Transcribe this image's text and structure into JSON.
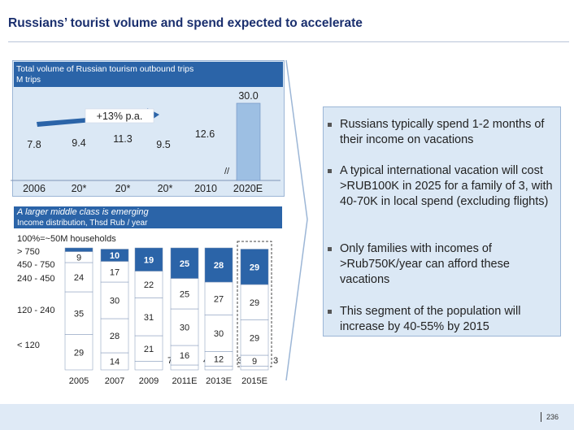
{
  "page": {
    "title": "Russians’ tourist volume and spend expected to accelerate",
    "page_number": "236"
  },
  "panel_top": {
    "title": "Total volume of Russian tourism outbound trips",
    "subtitle": "M trips"
  },
  "panel_bottom": {
    "title": "A larger middle class is emerging",
    "subtitle": "Income distribution, Thsd Rub / year"
  },
  "bullets": [
    "Russians typically spend 1-2 months of their income on vacations",
    "A typical international vacation will cost >RUB100K in 2025 for a family of 3, with 40-70K in local spend (excluding flights)",
    "Only families with incomes of >Rub750K/year can afford these vacations",
    "This segment of the population will increase by 40-55% by 2015"
  ],
  "colors": {
    "title": "#1a2f6e",
    "bar_fill": "#9dbfe3",
    "highlight": "#2b64a8",
    "panel_bg": "#dbe8f5"
  },
  "chart_data": [
    {
      "type": "bar",
      "title": "Total volume of Russian tourism outbound trips",
      "ylabel": "M trips",
      "categories": [
        "2006",
        "20*",
        "20*",
        "20*",
        "2010",
        "2020E"
      ],
      "values": [
        7.8,
        9.4,
        11.3,
        9.5,
        12.6,
        30.0
      ],
      "value_labels": [
        "7.8",
        "9.4",
        "11.3",
        "9.5",
        "12.6",
        "30.0"
      ],
      "ylim": [
        0,
        30
      ],
      "annotation": "+13% p.a.",
      "axis_break": "//"
    },
    {
      "type": "bar",
      "stacked": true,
      "title": "A larger middle class is emerging",
      "ylabel": "Income distribution, Thsd Rub / year",
      "total_label": "100%=~50M households",
      "categories": [
        "2005",
        "2007",
        "2009",
        "2011E",
        "2013E",
        "2015E"
      ],
      "series": [
        {
          "name": "< 120",
          "values": [
            29,
            14,
            7,
            4,
            3,
            3
          ]
        },
        {
          "name": "120 - 240",
          "values": [
            35,
            28,
            21,
            16,
            12,
            9
          ]
        },
        {
          "name": "240 - 450",
          "values": [
            24,
            30,
            31,
            30,
            30,
            29
          ]
        },
        {
          "name": "450 - 750",
          "values": [
            9,
            17,
            22,
            25,
            27,
            29
          ]
        },
        {
          "name": "> 750",
          "values": [
            3,
            10,
            19,
            25,
            28,
            29
          ]
        }
      ],
      "ylim": [
        0,
        100
      ],
      "highlight": "> 750",
      "dashed_box": "2015E"
    }
  ]
}
